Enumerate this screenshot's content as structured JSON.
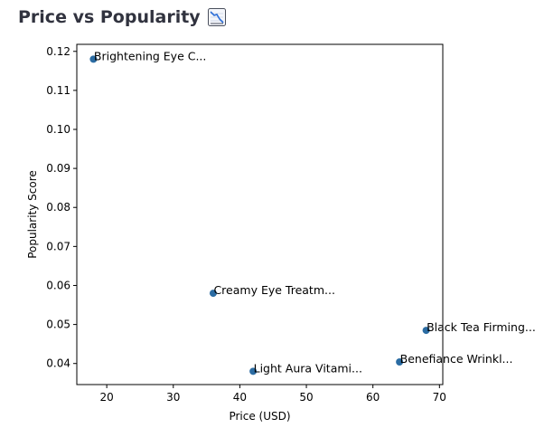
{
  "page": {
    "title": "Price vs Popularity",
    "title_icon": "chart-decreasing-icon"
  },
  "colors": {
    "heading": "#31333f",
    "marker": "#2b6ca3",
    "axis": "#000000",
    "background": "#ffffff"
  },
  "chart_data": {
    "type": "scatter",
    "title": "",
    "xlabel": "Price (USD)",
    "ylabel": "Popularity Score",
    "xlim": [
      15.5,
      70.5
    ],
    "ylim": [
      0.0346,
      0.1218
    ],
    "xticks": [
      20,
      30,
      40,
      50,
      60,
      70
    ],
    "xtick_labels": [
      "20",
      "30",
      "40",
      "50",
      "60",
      "70"
    ],
    "yticks": [
      0.04,
      0.05,
      0.06,
      0.07,
      0.08,
      0.09,
      0.1,
      0.11,
      0.12
    ],
    "ytick_labels": [
      "0.04",
      "0.05",
      "0.06",
      "0.07",
      "0.08",
      "0.09",
      "0.10",
      "0.11",
      "0.12"
    ],
    "grid": false,
    "points": [
      {
        "x": 18,
        "y": 0.118,
        "label": "Brightening Eye C..."
      },
      {
        "x": 36,
        "y": 0.058,
        "label": "Creamy Eye Treatm..."
      },
      {
        "x": 68,
        "y": 0.0485,
        "label": "Black Tea Firming..."
      },
      {
        "x": 64,
        "y": 0.0404,
        "label": "Benefiance Wrinkl..."
      },
      {
        "x": 42,
        "y": 0.038,
        "label": "Light Aura Vitami..."
      }
    ]
  }
}
